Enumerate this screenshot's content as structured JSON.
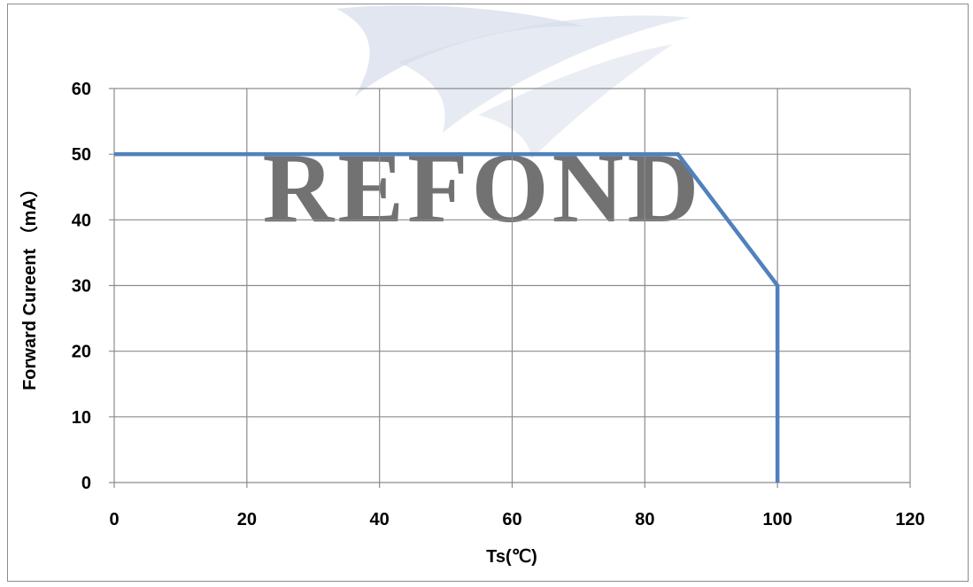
{
  "watermark": {
    "text": "REFOND",
    "color": "#c9d3e4"
  },
  "chart_data": {
    "type": "line",
    "xlabel": "Ts(℃)",
    "ylabel": "Forward Cureent （mA）",
    "xlim": [
      0,
      120
    ],
    "ylim": [
      0,
      60
    ],
    "x_ticks": [
      0,
      20,
      40,
      60,
      80,
      100,
      120
    ],
    "y_ticks": [
      0,
      10,
      20,
      30,
      40,
      50,
      60
    ],
    "grid": true,
    "legend": "none",
    "series": [
      {
        "color": "#4f81bd",
        "points": [
          [
            0,
            50
          ],
          [
            85,
            50
          ],
          [
            100,
            30
          ],
          [
            100,
            0
          ]
        ]
      }
    ]
  }
}
